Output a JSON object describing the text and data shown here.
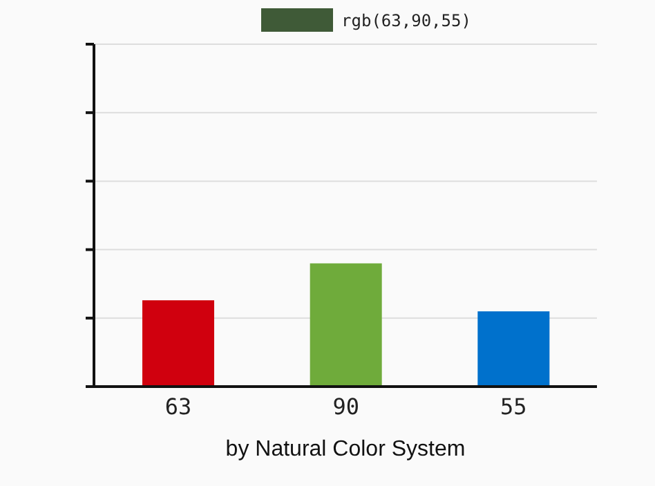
{
  "chart_data": {
    "type": "bar",
    "xlabel": "by Natural Color System",
    "categories": [
      null,
      null,
      null
    ],
    "series": [
      {
        "name": "rgb(63,90,55)",
        "color": "#3f5a37",
        "colors": [
          "#d0000e",
          "#6fab3b",
          "#0071cc"
        ],
        "values": [
          63,
          90,
          55
        ]
      }
    ],
    "ylim": [
      0,
      250
    ],
    "yticks": [
      {
        "value": 0,
        "label": null
      },
      {
        "value": 50,
        "label": null
      },
      {
        "value": 100,
        "label": null
      },
      {
        "value": 150,
        "label": null
      },
      {
        "value": 200,
        "label": null
      },
      {
        "value": 250,
        "label": null
      }
    ],
    "grid": "y",
    "legend": "top",
    "data_labels": true
  }
}
